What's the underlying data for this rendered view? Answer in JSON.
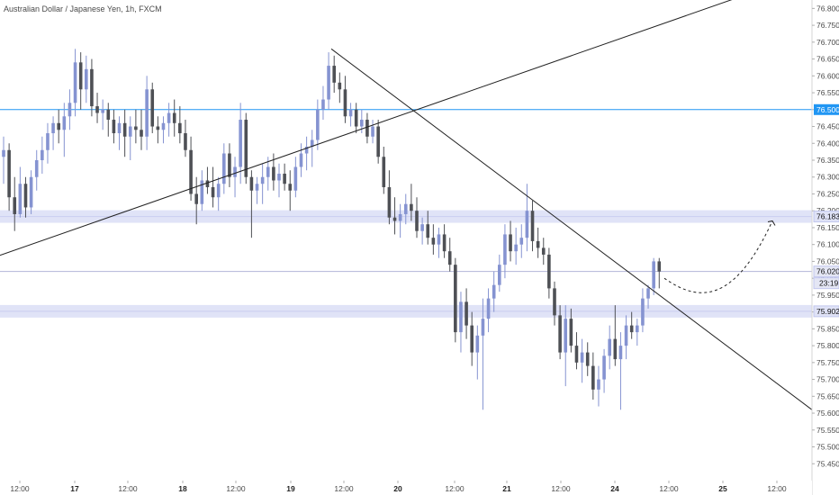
{
  "chart_title": "Australian Dollar / Japanese Yen, 1h, FXCM",
  "chart_data": {
    "type": "candlestick",
    "title": "Australian Dollar / Japanese Yen, 1h, FXCM",
    "ylim": [
      75.4,
      76.825
    ],
    "y_ticks": [
      "76.800",
      "76.750",
      "76.700",
      "76.650",
      "76.600",
      "76.550",
      "76.500",
      "76.450",
      "76.400",
      "76.350",
      "76.300",
      "76.250",
      "76.200",
      "76.150",
      "76.100",
      "76.050",
      "76.000",
      "75.950",
      "75.900",
      "75.850",
      "75.800",
      "75.750",
      "75.700",
      "75.650",
      "75.600",
      "75.550",
      "75.500",
      "75.450"
    ],
    "x_ticks": [
      {
        "label": "12:00",
        "day": false
      },
      {
        "label": "17",
        "day": true
      },
      {
        "label": "12:00",
        "day": false
      },
      {
        "label": "18",
        "day": true
      },
      {
        "label": "12:00",
        "day": false
      },
      {
        "label": "19",
        "day": true
      },
      {
        "label": "12:00",
        "day": false
      },
      {
        "label": "20",
        "day": true
      },
      {
        "label": "12:00",
        "day": false
      },
      {
        "label": "21",
        "day": true
      },
      {
        "label": "12:00",
        "day": false
      },
      {
        "label": "24",
        "day": true
      },
      {
        "label": "12:00",
        "day": false
      },
      {
        "label": "25",
        "day": true
      },
      {
        "label": "12:00",
        "day": false
      }
    ],
    "candles": [
      [
        76.36,
        76.42,
        76.28,
        76.38
      ],
      [
        76.38,
        76.4,
        76.2,
        76.24
      ],
      [
        76.24,
        76.3,
        76.14,
        76.19
      ],
      [
        76.19,
        76.33,
        76.18,
        76.28
      ],
      [
        76.28,
        76.3,
        76.18,
        76.21
      ],
      [
        76.21,
        76.32,
        76.19,
        76.3
      ],
      [
        76.3,
        76.38,
        76.26,
        76.35
      ],
      [
        76.35,
        76.42,
        76.31,
        76.38
      ],
      [
        76.38,
        76.46,
        76.34,
        76.43
      ],
      [
        76.43,
        76.48,
        76.38,
        76.46
      ],
      [
        76.46,
        76.5,
        76.4,
        76.44
      ],
      [
        76.44,
        76.52,
        76.36,
        76.48
      ],
      [
        76.48,
        76.56,
        76.44,
        76.52
      ],
      [
        76.52,
        76.68,
        76.48,
        76.64
      ],
      [
        76.64,
        76.67,
        76.5,
        76.56
      ],
      [
        76.56,
        76.66,
        76.52,
        76.62
      ],
      [
        76.62,
        76.65,
        76.48,
        76.51
      ],
      [
        76.51,
        76.55,
        76.46,
        76.49
      ],
      [
        76.49,
        76.53,
        76.44,
        76.5
      ],
      [
        76.5,
        76.52,
        76.42,
        76.47
      ],
      [
        76.47,
        76.5,
        76.4,
        76.43
      ],
      [
        76.43,
        76.48,
        76.38,
        76.46
      ],
      [
        76.46,
        76.5,
        76.36,
        76.42
      ],
      [
        76.42,
        76.48,
        76.35,
        76.45
      ],
      [
        76.45,
        76.5,
        76.4,
        76.44
      ],
      [
        76.44,
        76.5,
        76.38,
        76.42
      ],
      [
        76.42,
        76.6,
        76.38,
        76.56
      ],
      [
        76.56,
        76.58,
        76.43,
        76.45
      ],
      [
        76.45,
        76.48,
        76.4,
        76.44
      ],
      [
        76.44,
        76.48,
        76.4,
        76.46
      ],
      [
        76.46,
        76.52,
        76.42,
        76.49
      ],
      [
        76.49,
        76.53,
        76.42,
        76.46
      ],
      [
        76.46,
        76.51,
        76.4,
        76.43
      ],
      [
        76.43,
        76.47,
        76.36,
        76.38
      ],
      [
        76.38,
        76.42,
        76.23,
        76.25
      ],
      [
        76.25,
        76.3,
        76.16,
        76.22
      ],
      [
        76.22,
        76.32,
        76.2,
        76.29
      ],
      [
        76.29,
        76.33,
        76.25,
        76.27
      ],
      [
        76.27,
        76.33,
        76.21,
        76.24
      ],
      [
        76.24,
        76.3,
        76.2,
        76.28
      ],
      [
        76.28,
        76.4,
        76.25,
        76.37
      ],
      [
        76.37,
        76.4,
        76.27,
        76.3
      ],
      [
        76.3,
        76.36,
        76.24,
        76.33
      ],
      [
        76.33,
        76.52,
        76.28,
        76.47
      ],
      [
        76.47,
        76.49,
        76.28,
        76.3
      ],
      [
        76.3,
        76.32,
        76.12,
        76.26
      ],
      [
        76.26,
        76.3,
        76.22,
        76.28
      ],
      [
        76.28,
        76.34,
        76.22,
        76.3
      ],
      [
        76.3,
        76.36,
        76.26,
        76.33
      ],
      [
        76.33,
        76.37,
        76.26,
        76.29
      ],
      [
        76.29,
        76.34,
        76.24,
        76.31
      ],
      [
        76.31,
        76.34,
        76.26,
        76.28
      ],
      [
        76.28,
        76.32,
        76.2,
        76.26
      ],
      [
        76.26,
        76.36,
        76.24,
        76.33
      ],
      [
        76.33,
        76.4,
        76.3,
        76.37
      ],
      [
        76.37,
        76.42,
        76.32,
        76.39
      ],
      [
        76.39,
        76.44,
        76.33,
        76.41
      ],
      [
        76.41,
        76.53,
        76.38,
        76.5
      ],
      [
        76.5,
        76.57,
        76.47,
        76.53
      ],
      [
        76.53,
        76.67,
        76.5,
        76.63
      ],
      [
        76.63,
        76.66,
        76.55,
        76.58
      ],
      [
        76.58,
        76.61,
        76.52,
        76.56
      ],
      [
        76.56,
        76.6,
        76.46,
        76.48
      ],
      [
        76.48,
        76.52,
        76.45,
        76.5
      ],
      [
        76.5,
        76.52,
        76.43,
        76.45
      ],
      [
        76.45,
        76.5,
        76.43,
        76.47
      ],
      [
        76.47,
        76.49,
        76.4,
        76.42
      ],
      [
        76.42,
        76.47,
        76.4,
        76.45
      ],
      [
        76.45,
        76.47,
        76.34,
        76.36
      ],
      [
        76.36,
        76.39,
        76.25,
        76.27
      ],
      [
        76.27,
        76.32,
        76.16,
        76.18
      ],
      [
        76.18,
        76.24,
        76.13,
        76.17
      ],
      [
        76.17,
        76.22,
        76.12,
        76.19
      ],
      [
        76.19,
        76.25,
        76.16,
        76.22
      ],
      [
        76.22,
        76.28,
        76.17,
        76.2
      ],
      [
        76.2,
        76.24,
        76.12,
        76.14
      ],
      [
        76.14,
        76.18,
        76.1,
        76.16
      ],
      [
        76.16,
        76.2,
        76.1,
        76.12
      ],
      [
        76.12,
        76.16,
        76.07,
        76.1
      ],
      [
        76.1,
        76.15,
        76.06,
        76.13
      ],
      [
        76.13,
        76.16,
        76.06,
        76.08
      ],
      [
        76.08,
        76.12,
        76.02,
        76.04
      ],
      [
        76.04,
        76.06,
        75.81,
        75.84
      ],
      [
        75.84,
        75.96,
        75.78,
        75.93
      ],
      [
        75.93,
        75.97,
        75.82,
        75.86
      ],
      [
        75.86,
        75.9,
        75.74,
        75.78
      ],
      [
        75.78,
        75.86,
        75.7,
        75.83
      ],
      [
        75.83,
        75.94,
        75.61,
        75.88
      ],
      [
        75.88,
        75.97,
        75.84,
        75.94
      ],
      [
        75.94,
        76.02,
        75.9,
        75.98
      ],
      [
        75.98,
        76.07,
        75.96,
        76.04
      ],
      [
        76.04,
        76.16,
        76.0,
        76.13
      ],
      [
        76.13,
        76.17,
        76.05,
        76.08
      ],
      [
        76.08,
        76.15,
        76.04,
        76.1
      ],
      [
        76.1,
        76.16,
        76.06,
        76.12
      ],
      [
        76.12,
        76.28,
        76.08,
        76.2
      ],
      [
        76.2,
        76.23,
        76.08,
        76.11
      ],
      [
        76.11,
        76.15,
        76.06,
        76.09
      ],
      [
        76.09,
        76.12,
        76.04,
        76.07
      ],
      [
        76.07,
        76.09,
        75.94,
        75.97
      ],
      [
        75.97,
        75.99,
        75.86,
        75.89
      ],
      [
        75.89,
        75.92,
        75.76,
        75.78
      ],
      [
        75.78,
        75.92,
        75.68,
        75.88
      ],
      [
        75.88,
        75.91,
        75.78,
        75.8
      ],
      [
        75.8,
        75.84,
        75.73,
        75.75
      ],
      [
        75.75,
        75.82,
        75.69,
        75.78
      ],
      [
        75.78,
        75.81,
        75.71,
        75.74
      ],
      [
        75.74,
        75.78,
        75.64,
        75.67
      ],
      [
        75.67,
        75.74,
        75.62,
        75.7
      ],
      [
        75.7,
        75.79,
        75.66,
        75.77
      ],
      [
        75.77,
        75.86,
        75.73,
        75.82
      ],
      [
        75.82,
        75.92,
        75.74,
        75.76
      ],
      [
        75.76,
        75.84,
        75.61,
        75.8
      ],
      [
        75.8,
        75.89,
        75.76,
        75.86
      ],
      [
        75.86,
        75.9,
        75.82,
        75.84
      ],
      [
        75.84,
        75.88,
        75.8,
        75.86
      ],
      [
        75.86,
        75.97,
        75.84,
        75.94
      ],
      [
        75.94,
        75.98,
        75.91,
        75.97
      ],
      [
        75.97,
        76.06,
        75.95,
        76.05
      ],
      [
        76.05,
        76.06,
        75.97,
        76.02
      ]
    ],
    "price_levels": [
      {
        "value": "76.500",
        "price": 76.5,
        "style": "line",
        "color": "#2196f3"
      },
      {
        "value": "76.183",
        "price": 76.183,
        "style": "zone",
        "color": "#e0e3f7"
      },
      {
        "value": "76.020",
        "price": 76.02,
        "style": "line",
        "color": "#b2b5d8"
      },
      {
        "value": "75.902",
        "price": 75.902,
        "style": "zone",
        "color": "#e0e3f7"
      }
    ],
    "countdown": "23:19",
    "colors": {
      "up": "#8593d1",
      "down": "#4e5055",
      "line": "#2196f3",
      "zone": "#e0e3f7",
      "trend": "#222222"
    }
  }
}
